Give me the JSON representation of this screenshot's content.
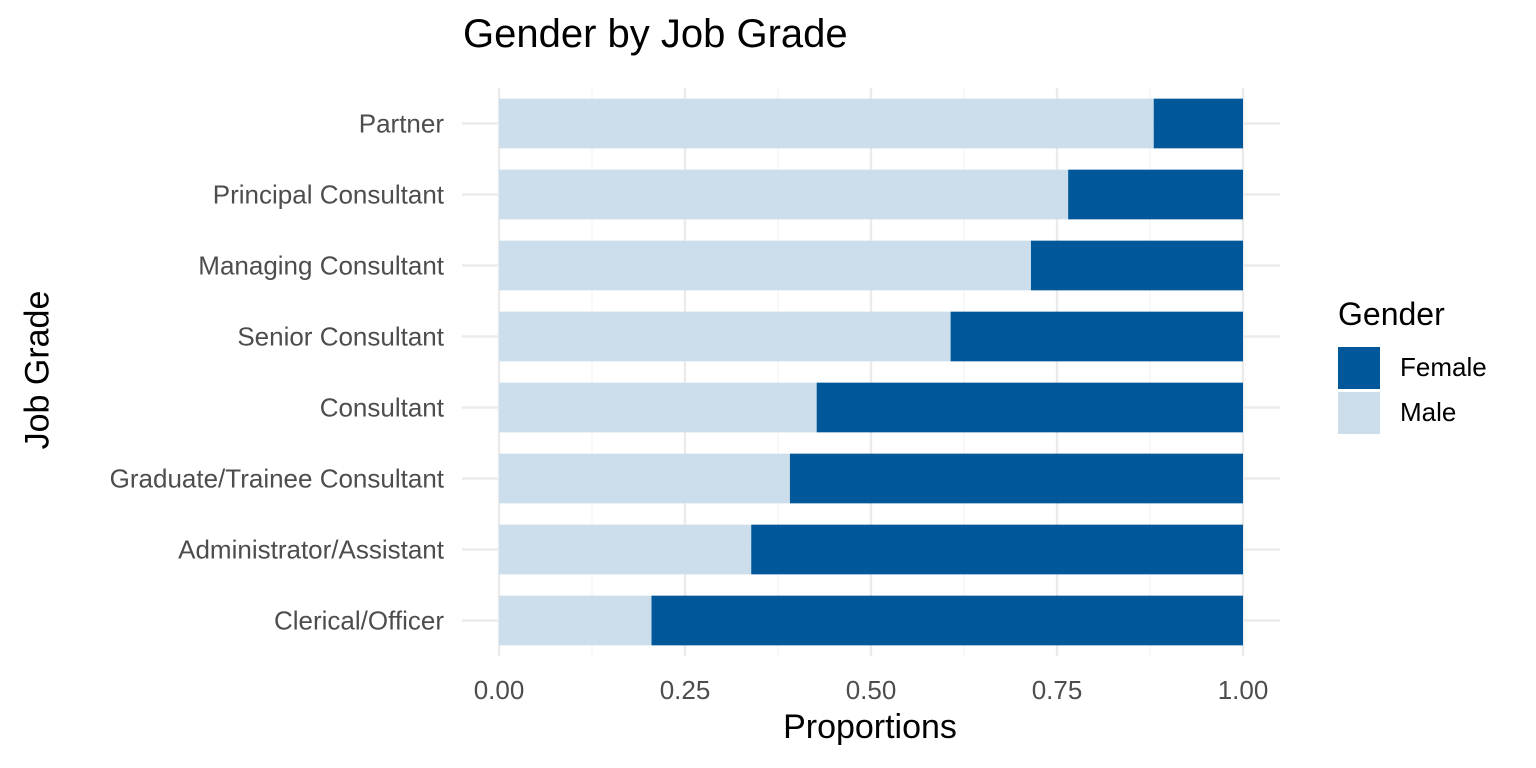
{
  "chart_data": {
    "type": "bar",
    "orientation": "horizontal",
    "stacked": true,
    "title": "Gender by Job Grade",
    "xlabel": "Proportions",
    "ylabel": "Job Grade",
    "xlim": [
      0,
      1
    ],
    "x_ticks": [
      "0.00",
      "0.25",
      "0.50",
      "0.75",
      "1.00"
    ],
    "grid": true,
    "categories": [
      "Partner",
      "Principal Consultant",
      "Managing Consultant",
      "Senior Consultant",
      "Consultant",
      "Graduate/Trainee Consultant",
      "Administrator/Assistant",
      "Clerical/Officer"
    ],
    "series": [
      {
        "name": "Male",
        "color": "#ccdeeb",
        "values": [
          0.88,
          0.765,
          0.715,
          0.607,
          0.427,
          0.391,
          0.339,
          0.205
        ]
      },
      {
        "name": "Female",
        "color": "#00589b",
        "values": [
          0.12,
          0.235,
          0.285,
          0.393,
          0.573,
          0.609,
          0.661,
          0.795
        ]
      }
    ],
    "legend": {
      "title": "Gender",
      "position": "right",
      "items": [
        {
          "label": "Female",
          "color": "#00589b"
        },
        {
          "label": "Male",
          "color": "#ccdeeb"
        }
      ]
    }
  }
}
